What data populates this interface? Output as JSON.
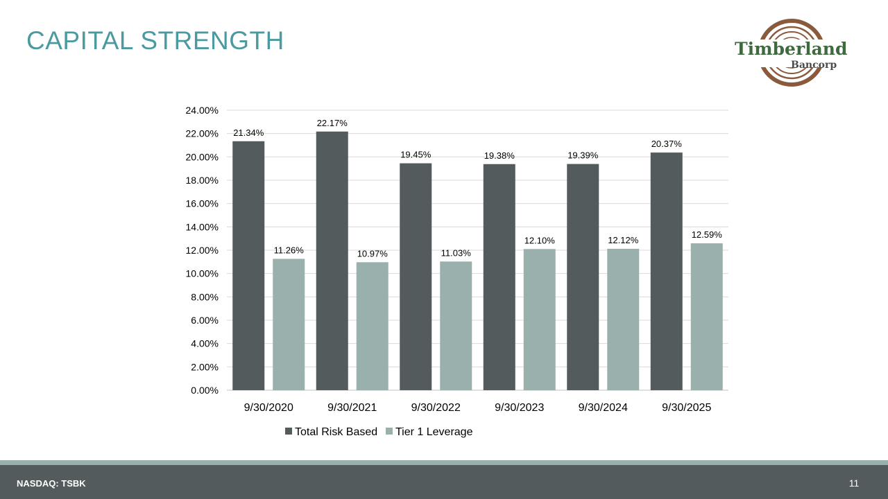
{
  "slide": {
    "title": "CAPITAL STRENGTH",
    "logo_word": "Timberland",
    "logo_sub": "Bancorp",
    "footer_left": "NASDAQ: TSBK",
    "page_number": "11"
  },
  "colors": {
    "title": "#4a9aa0",
    "series_1": "#535b5d",
    "series_2": "#9ab0ac",
    "footer": "#535b5d",
    "logo_green": "#3f6a3f",
    "logo_brown": "#8a5a3c"
  },
  "chart_data": {
    "type": "bar",
    "categories": [
      "9/30/2020",
      "9/30/2021",
      "9/30/2022",
      "9/30/2023",
      "9/30/2024",
      "9/30/2025"
    ],
    "series": [
      {
        "name": "Total Risk Based",
        "values": [
          21.34,
          22.17,
          19.45,
          19.38,
          19.39,
          20.37
        ],
        "labels": [
          "21.34%",
          "22.17%",
          "19.45%",
          "19.38%",
          "19.39%",
          "20.37%"
        ]
      },
      {
        "name": "Tier 1 Leverage",
        "values": [
          11.26,
          10.97,
          11.03,
          12.1,
          12.12,
          12.59
        ],
        "labels": [
          "11.26%",
          "10.97%",
          "11.03%",
          "12.10%",
          "12.12%",
          "12.59%"
        ]
      }
    ],
    "ylim": [
      0,
      24
    ],
    "yticks": [
      0,
      2,
      4,
      6,
      8,
      10,
      12,
      14,
      16,
      18,
      20,
      22,
      24
    ],
    "ytick_labels": [
      "0.00%",
      "2.00%",
      "4.00%",
      "6.00%",
      "8.00%",
      "10.00%",
      "12.00%",
      "14.00%",
      "16.00%",
      "18.00%",
      "20.00%",
      "22.00%",
      "24.00%"
    ],
    "grid": true,
    "legend": "bottom"
  }
}
